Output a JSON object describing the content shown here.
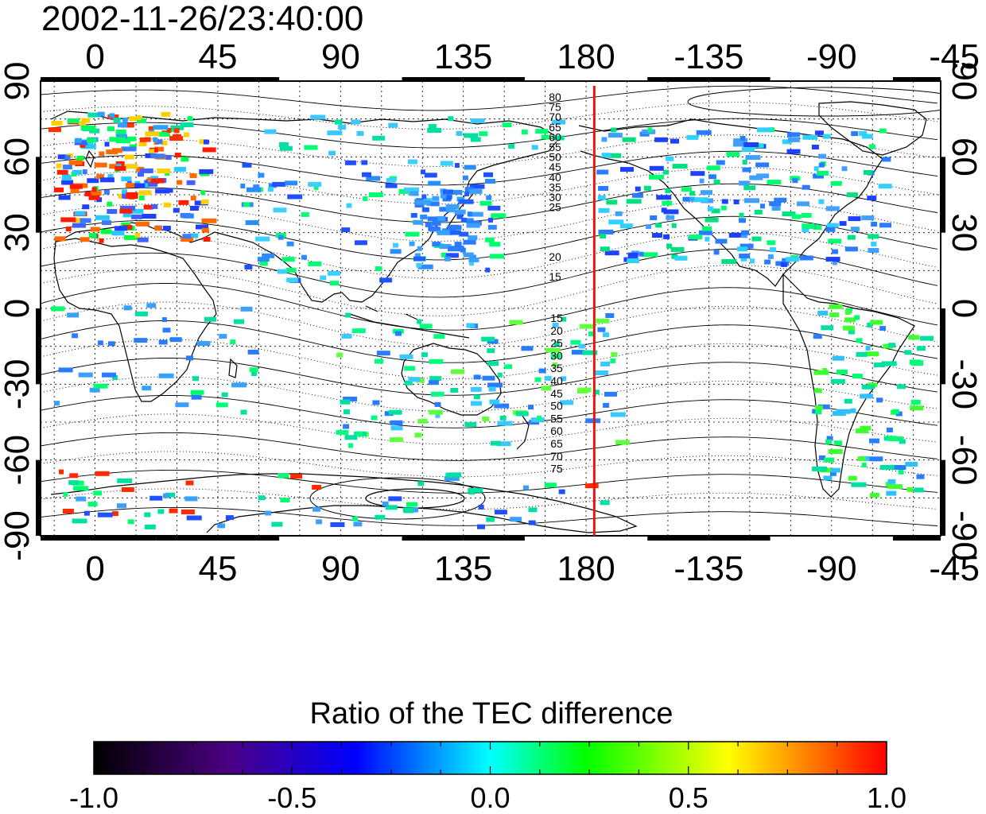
{
  "title": "2002-11-26/23:40:00",
  "map": {
    "top_lon_labels": [
      "0",
      "45",
      "90",
      "135",
      "180",
      "-135",
      "-90",
      "-45"
    ],
    "bottom_lon_labels": [
      "0",
      "45",
      "90",
      "135",
      "180",
      "-135",
      "-90",
      "-45"
    ],
    "left_lat_labels": [
      "90",
      "60",
      "30",
      "0",
      "-30",
      "-60",
      "-90"
    ],
    "right_lat_labels": [
      "90",
      "60",
      "30",
      "0",
      "-30",
      "-60",
      "-90"
    ],
    "contour_labels_north": [
      "80",
      "75",
      "70",
      "65",
      "60",
      "55",
      "50",
      "45",
      "40",
      "35",
      "30",
      "25",
      "20",
      "15"
    ],
    "contour_labels_south": [
      "15",
      "20",
      "25",
      "30",
      "35",
      "40",
      "45",
      "50",
      "55",
      "60",
      "65",
      "70",
      "75"
    ],
    "terminator_color": "#e8160c",
    "terminator_lon": 183,
    "lon_range": [
      -20,
      310
    ],
    "lat_range": [
      -90,
      90
    ]
  },
  "colorbar": {
    "title": "Ratio of the TEC difference",
    "tick_labels": [
      "-1.0",
      "-0.5",
      "0.0",
      "0.5",
      "1.0"
    ],
    "range": [
      -1.0,
      1.0
    ],
    "colors": [
      "#000000",
      "#4b0082",
      "#0000ff",
      "#00ffff",
      "#00ff00",
      "#ffff00",
      "#ff0000"
    ]
  }
}
